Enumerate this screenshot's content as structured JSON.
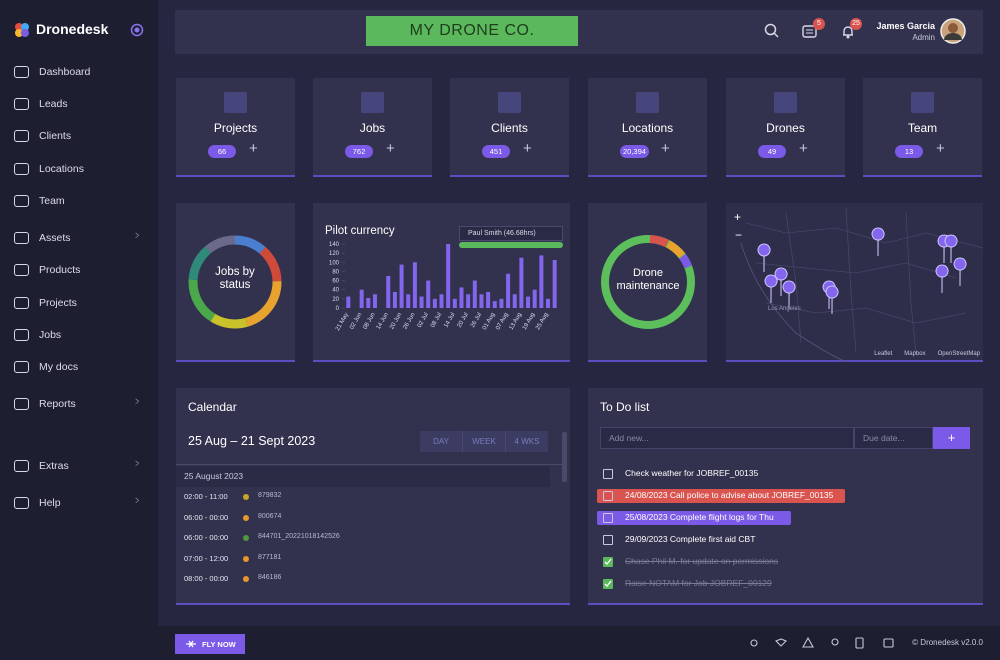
{
  "sidebar": {
    "brand": "Dronedesk",
    "nav": [
      {
        "label": "Dashboard",
        "expandable": false
      },
      {
        "label": "Leads",
        "expandable": false
      },
      {
        "label": "Clients",
        "expandable": false
      },
      {
        "label": "Locations",
        "expandable": false
      },
      {
        "label": "Team",
        "expandable": false
      },
      {
        "label": "Assets",
        "expandable": true
      },
      {
        "label": "Products",
        "expandable": false
      },
      {
        "label": "Projects",
        "expandable": false
      },
      {
        "label": "Jobs",
        "expandable": false
      },
      {
        "label": "My docs",
        "expandable": false
      },
      {
        "label": "Reports",
        "expandable": true
      },
      {
        "label": "Extras",
        "expandable": true
      },
      {
        "label": "Help",
        "expandable": true
      }
    ]
  },
  "header": {
    "company": "MY DRONE CO.",
    "messages_badge": "5",
    "notifications_badge": "25",
    "user_name": "James Garcia",
    "user_role": "Admin"
  },
  "stats": [
    {
      "label": "Projects",
      "count": "66"
    },
    {
      "label": "Jobs",
      "count": "762"
    },
    {
      "label": "Clients",
      "count": "451"
    },
    {
      "label": "Locations",
      "count": "20,394"
    },
    {
      "label": "Drones",
      "count": "49"
    },
    {
      "label": "Team",
      "count": "13"
    }
  ],
  "jobs_by_status": {
    "label": "Jobs by status"
  },
  "pilot_currency": {
    "type": "bar",
    "title": "Pilot currency",
    "pilot": "Paul Smith (46.68hrs)",
    "categories": [
      "21 May",
      null,
      "02 Jun",
      null,
      "08 Jun",
      null,
      "14 Jun",
      null,
      "20 Jun",
      null,
      "26 Jun",
      null,
      "02 Jul",
      null,
      "08 Jul",
      null,
      "14 Jul",
      null,
      "20 Jul",
      null,
      "26 Jul",
      null,
      "01 Aug",
      null,
      "07 Aug",
      null,
      "13 Aug",
      null,
      "19 Aug",
      null,
      "25 Aug",
      null
    ],
    "values": [
      25,
      0,
      40,
      22,
      30,
      0,
      70,
      35,
      95,
      30,
      100,
      25,
      60,
      20,
      30,
      140,
      20,
      45,
      30,
      60,
      30,
      35,
      15,
      20,
      75,
      30,
      110,
      25,
      40,
      115,
      20,
      105
    ],
    "color": "#8466ee",
    "ylim": [
      0,
      140
    ],
    "yticks": [
      0,
      20,
      40,
      60,
      80,
      100,
      120,
      140
    ]
  },
  "drone_maintenance": {
    "label": "Drone maintenance"
  },
  "map": {
    "zoom_in": "+",
    "zoom_out": "−",
    "attribution": [
      "Leaflet",
      "Mapbox",
      "OpenStreetMap"
    ],
    "city": "Los Angeles"
  },
  "calendar": {
    "title": "Calendar",
    "range": "25 Aug – 21 Sept 2023",
    "views": [
      "DAY",
      "WEEK",
      "4 WKS"
    ],
    "day": "25 August 2023",
    "events": [
      {
        "time": "02:00 - 11:00",
        "ref": "879832",
        "color": "#c9a42a"
      },
      {
        "time": "06:00 - 00:00",
        "ref": "800674",
        "color": "#e8962e"
      },
      {
        "time": "06:00 - 00:00",
        "ref": "844701_20221018142526",
        "color": "#4e9a3a"
      },
      {
        "time": "07:00 - 12:00",
        "ref": "877181",
        "color": "#e8962e"
      },
      {
        "time": "08:00 - 00:00",
        "ref": "846186",
        "color": "#e8962e"
      }
    ]
  },
  "todo": {
    "title": "To Do list",
    "add_placeholder": "Add new...",
    "date_placeholder": "Due date...",
    "add_button": "+",
    "items": [
      {
        "text": "Check weather for JOBREF_00135",
        "done": false,
        "highlight": null
      },
      {
        "text": "24/08/2023 Call police to advise about JOBREF_00135",
        "done": false,
        "highlight": "#d9534f"
      },
      {
        "text": "25/08/2023 Complete flight logs for Thu",
        "done": false,
        "highlight": "#7a5ae6"
      },
      {
        "text": "29/09/2023 Complete first aid CBT",
        "done": false,
        "highlight": null
      },
      {
        "text": "Chase Phil M. for update on permissions",
        "done": true,
        "highlight": null
      },
      {
        "text": "Raise NOTAM for Job JOBREF_00129",
        "done": true,
        "highlight": null
      }
    ]
  },
  "footer": {
    "button": "FLY NOW",
    "copyright": "© Dronedesk v2.0.0"
  }
}
